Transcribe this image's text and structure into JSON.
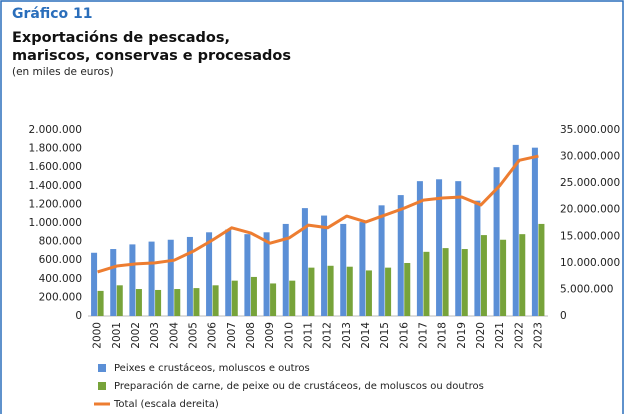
{
  "chart_data": {
    "type": "bar",
    "title": "Gráfico 11",
    "subtitle_lines": [
      "Exportacións de pescados,",
      "mariscos, conservas e procesados"
    ],
    "note": "(en miles de euros)",
    "categories": [
      "2000",
      "2001",
      "2002",
      "2003",
      "2004",
      "2005",
      "2006",
      "2007",
      "2008",
      "2009",
      "2010",
      "2011",
      "2012",
      "2013",
      "2014",
      "2015",
      "2016",
      "2017",
      "2018",
      "2019",
      "2020",
      "2021",
      "2022",
      "2023"
    ],
    "series": [
      {
        "name": "Peixes e crustáceos, moluscos e outros",
        "color": "#5b8fd6",
        "values": [
          680000,
          720000,
          770000,
          800000,
          820000,
          850000,
          900000,
          930000,
          880000,
          900000,
          990000,
          1160000,
          1080000,
          990000,
          1010000,
          1190000,
          1300000,
          1450000,
          1470000,
          1450000,
          1240000,
          1600000,
          1840000,
          1810000
        ]
      },
      {
        "name": "Preparación de carne, de peixe ou de crustáceos, de moluscos ou doutros",
        "color": "#77a33a",
        "values": [
          270000,
          330000,
          290000,
          280000,
          290000,
          300000,
          330000,
          380000,
          420000,
          350000,
          380000,
          520000,
          540000,
          530000,
          490000,
          520000,
          570000,
          690000,
          730000,
          720000,
          870000,
          820000,
          880000,
          990000
        ]
      },
      {
        "name": "Total (escala dereita)",
        "color": "#ed7d31",
        "axis": "y2",
        "type": "line",
        "values": [
          8300000,
          9400000,
          9800000,
          10000000,
          10500000,
          12200000,
          14300000,
          16600000,
          15600000,
          13700000,
          14700000,
          17100000,
          16600000,
          18800000,
          17700000,
          19000000,
          20300000,
          21800000,
          22200000,
          22400000,
          20900000,
          24600000,
          29300000,
          30100000
        ]
      }
    ],
    "ylim": [
      0,
      2000000
    ],
    "yticks": [
      0,
      {
        "value": 200000,
        "label": "200.000"
      },
      {
        "value": 400000,
        "label": "400.000"
      },
      {
        "value": 600000,
        "label": "600.000"
      },
      {
        "value": 800000,
        "label": "800.000"
      },
      {
        "value": 1000000,
        "label": "1.000.000"
      },
      {
        "value": 1200000,
        "label": "1.200.000"
      },
      {
        "value": 1400000,
        "label": "1.400.000"
      },
      {
        "value": 1600000,
        "label": "1.600.000"
      },
      {
        "value": 1800000,
        "label": "1.800.000"
      },
      {
        "value": 2000000,
        "label": "2.000.000"
      }
    ],
    "y2lim": [
      0,
      35000000
    ],
    "y2ticks": [
      0,
      {
        "value": 5000000,
        "label": "5.000.000"
      },
      {
        "value": 10000000,
        "label": "10.000.000"
      },
      {
        "value": 15000000,
        "label": "15.000.000"
      },
      {
        "value": 20000000,
        "label": "20.000.000"
      },
      {
        "value": 25000000,
        "label": "25.000.000"
      },
      {
        "value": 30000000,
        "label": "30.000.000"
      },
      {
        "value": 35000000,
        "label": "35.000.000"
      }
    ],
    "legend": "bottom"
  }
}
